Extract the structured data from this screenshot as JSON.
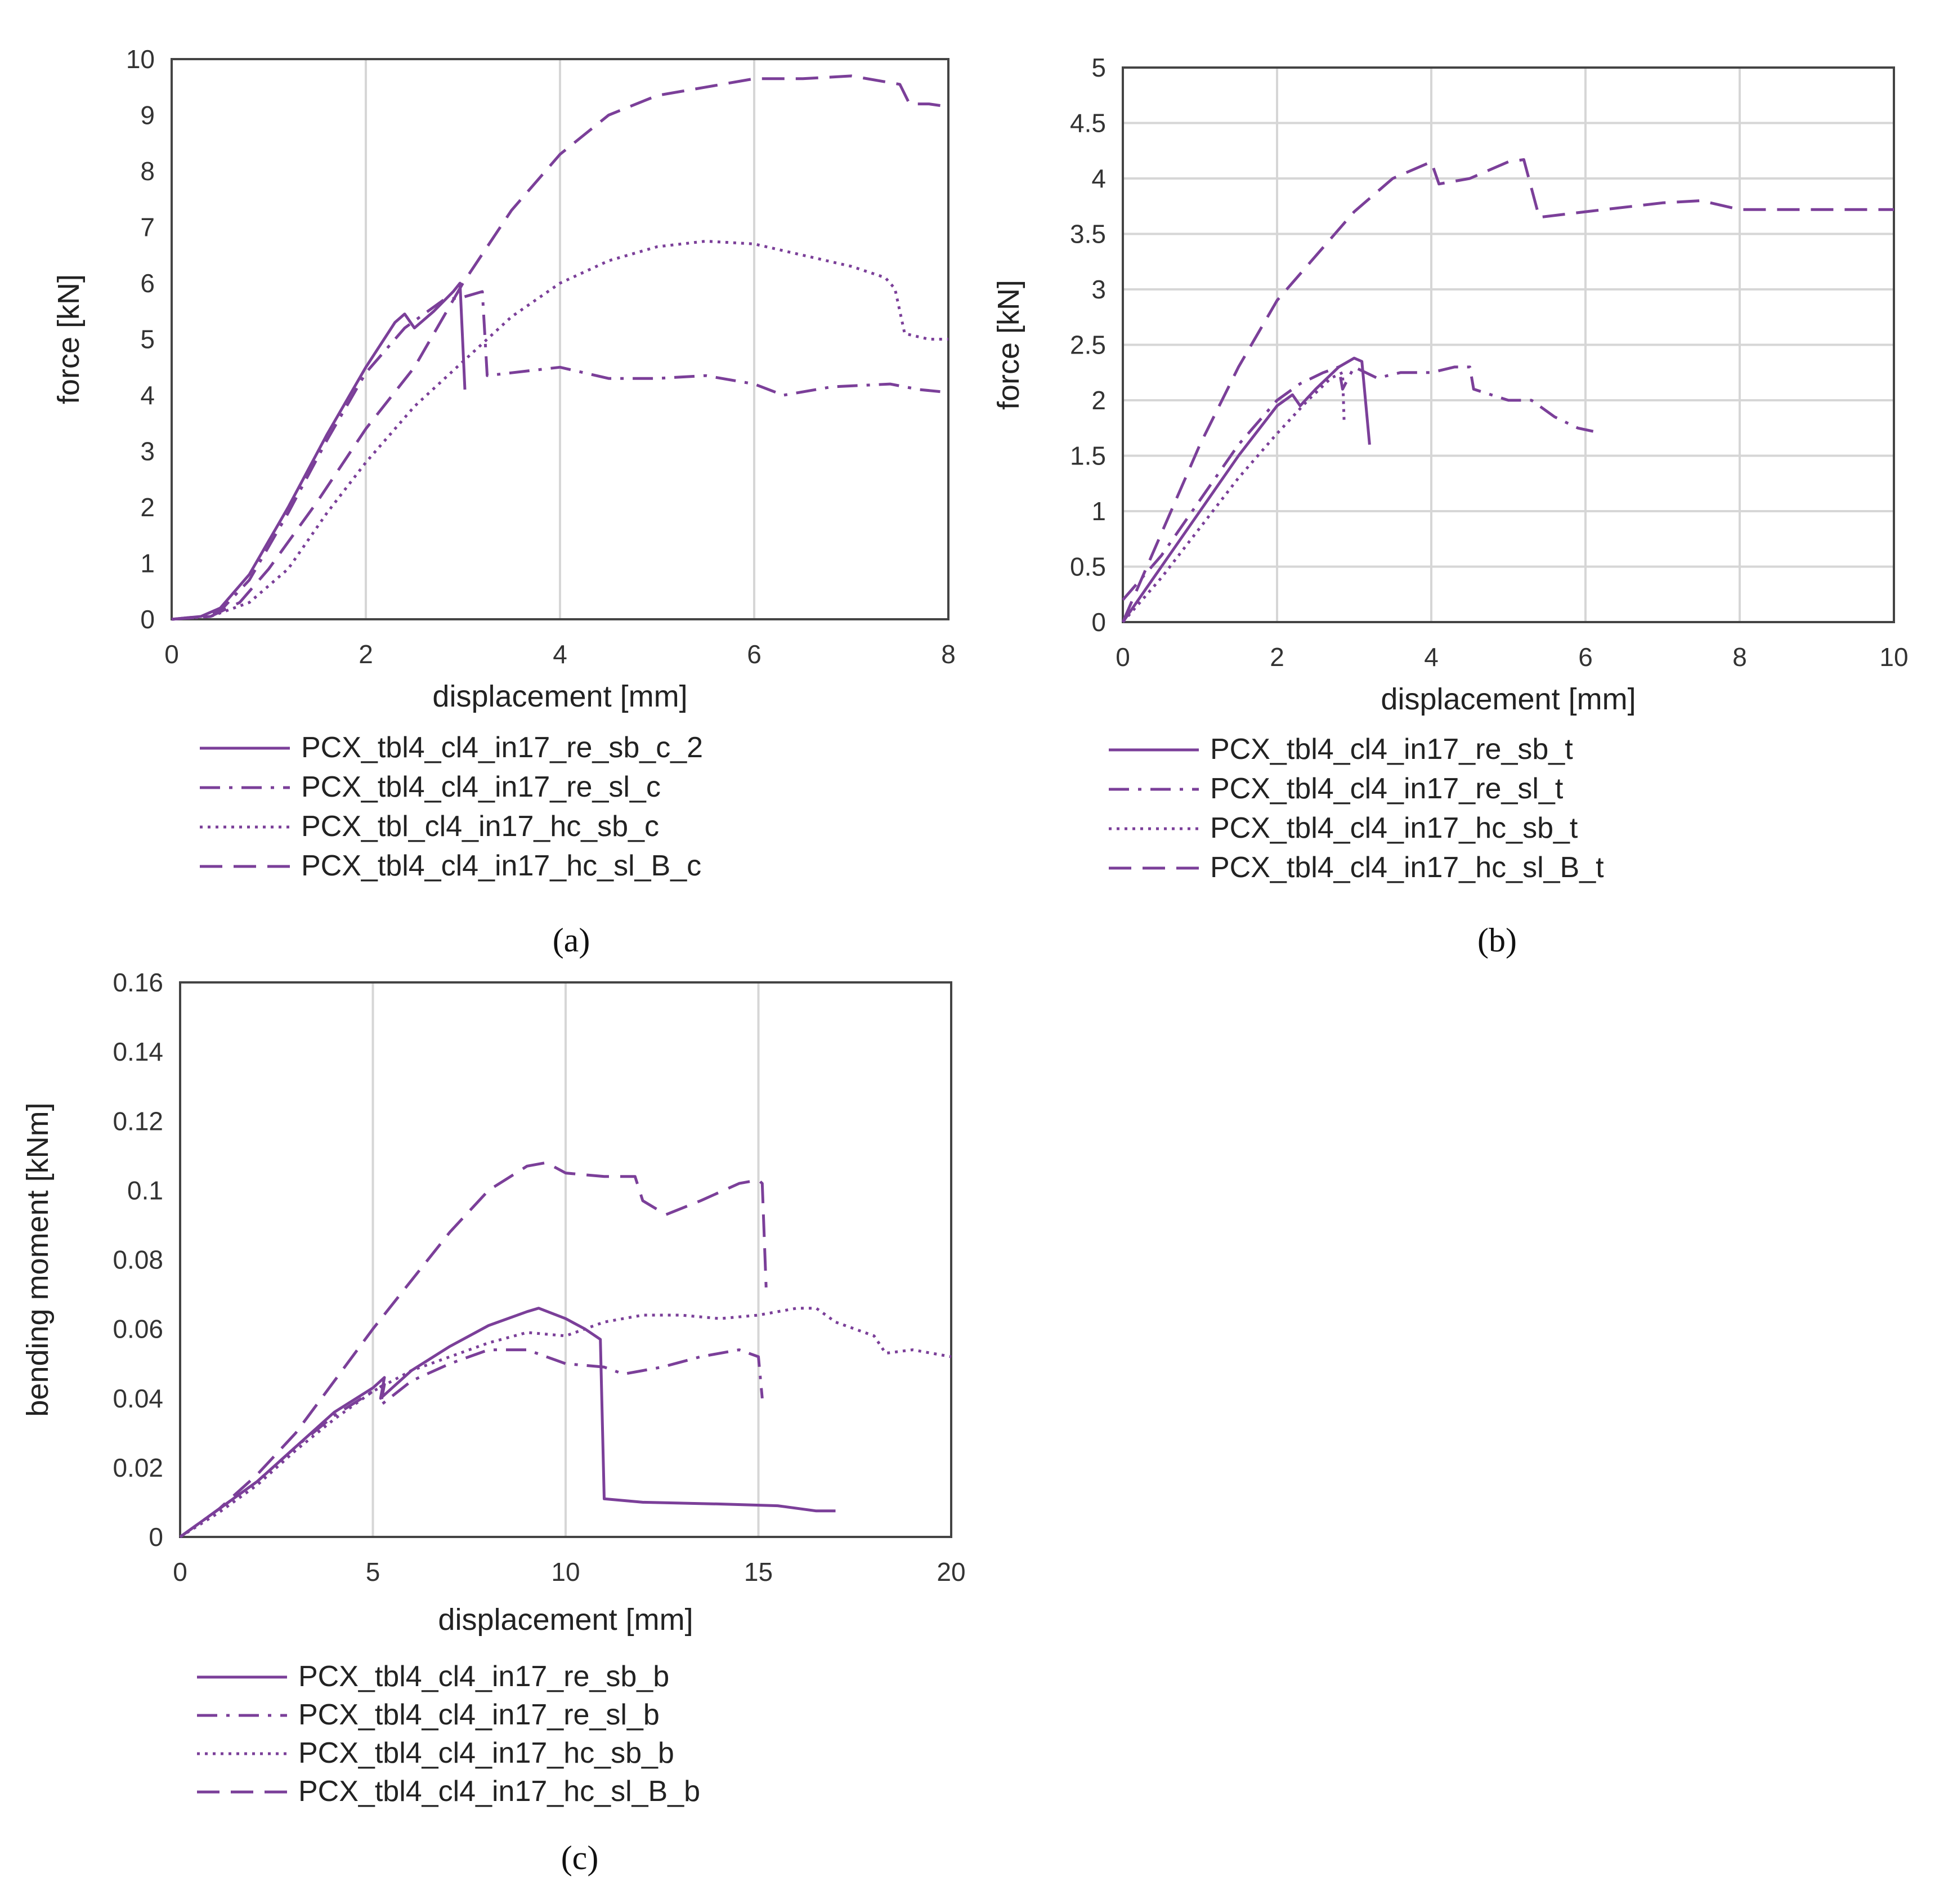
{
  "colors": {
    "series": "#7b3f99",
    "grid": "#d6d6d6",
    "frame": "#444444"
  },
  "chart_data": [
    {
      "id": "a",
      "type": "line",
      "caption": "(a)",
      "xlabel": "displacement [mm]",
      "ylabel": "force [kN]",
      "xlim": [
        0,
        8
      ],
      "ylim": [
        0,
        10
      ],
      "xticks": [
        0,
        2,
        4,
        6,
        8
      ],
      "yticks": [
        0,
        1,
        2,
        3,
        4,
        5,
        6,
        7,
        8,
        9,
        10
      ],
      "grid": "vertical",
      "legend": "below",
      "series": [
        {
          "name": "PCX_tbl4_cl4_in17_re_sb_c_2",
          "style": "solid",
          "points": [
            [
              0,
              0
            ],
            [
              0.3,
              0.05
            ],
            [
              0.5,
              0.2
            ],
            [
              0.8,
              0.8
            ],
            [
              1.2,
              2.0
            ],
            [
              1.6,
              3.3
            ],
            [
              2.0,
              4.5
            ],
            [
              2.3,
              5.3
            ],
            [
              2.4,
              5.45
            ],
            [
              2.5,
              5.2
            ],
            [
              2.7,
              5.5
            ],
            [
              2.9,
              5.85
            ],
            [
              2.97,
              6.0
            ],
            [
              3.02,
              4.1
            ]
          ]
        },
        {
          "name": "PCX_tbl4_cl4_in17_re_sl_c",
          "style": "dashdot",
          "points": [
            [
              0,
              0
            ],
            [
              0.3,
              0.05
            ],
            [
              0.5,
              0.15
            ],
            [
              0.8,
              0.7
            ],
            [
              1.2,
              1.9
            ],
            [
              1.6,
              3.2
            ],
            [
              2.0,
              4.4
            ],
            [
              2.4,
              5.2
            ],
            [
              2.8,
              5.7
            ],
            [
              3.0,
              5.75
            ],
            [
              3.2,
              5.85
            ],
            [
              3.25,
              4.35
            ],
            [
              3.5,
              4.4
            ],
            [
              4.0,
              4.5
            ],
            [
              4.5,
              4.3
            ],
            [
              5.0,
              4.3
            ],
            [
              5.5,
              4.35
            ],
            [
              6.0,
              4.2
            ],
            [
              6.3,
              4.0
            ],
            [
              6.8,
              4.15
            ],
            [
              7.4,
              4.2
            ],
            [
              7.7,
              4.1
            ],
            [
              8.0,
              4.05
            ]
          ]
        },
        {
          "name": "PCX_tbl_cl4_in17_hc_sb_c",
          "style": "dotted",
          "points": [
            [
              0,
              0
            ],
            [
              0.4,
              0.05
            ],
            [
              0.8,
              0.3
            ],
            [
              1.2,
              0.9
            ],
            [
              1.6,
              1.9
            ],
            [
              2.0,
              2.8
            ],
            [
              2.5,
              3.8
            ],
            [
              3.0,
              4.6
            ],
            [
              3.5,
              5.4
            ],
            [
              4.0,
              6.0
            ],
            [
              4.5,
              6.4
            ],
            [
              5.0,
              6.65
            ],
            [
              5.5,
              6.75
            ],
            [
              6.0,
              6.7
            ],
            [
              6.5,
              6.5
            ],
            [
              7.0,
              6.3
            ],
            [
              7.35,
              6.1
            ],
            [
              7.45,
              5.9
            ],
            [
              7.55,
              5.1
            ],
            [
              7.8,
              5.0
            ],
            [
              8.0,
              5.0
            ]
          ]
        },
        {
          "name": "PCX_tbl4_cl4_in17_hc_sl_B_c",
          "style": "dashed",
          "points": [
            [
              0,
              0
            ],
            [
              0.4,
              0.05
            ],
            [
              0.7,
              0.3
            ],
            [
              1.0,
              0.9
            ],
            [
              1.5,
              2.1
            ],
            [
              2.0,
              3.4
            ],
            [
              2.5,
              4.5
            ],
            [
              3.0,
              6.0
            ],
            [
              3.5,
              7.3
            ],
            [
              4.0,
              8.3
            ],
            [
              4.5,
              9.0
            ],
            [
              5.0,
              9.35
            ],
            [
              5.5,
              9.5
            ],
            [
              6.0,
              9.65
            ],
            [
              6.5,
              9.65
            ],
            [
              7.0,
              9.7
            ],
            [
              7.5,
              9.55
            ],
            [
              7.6,
              9.2
            ],
            [
              7.8,
              9.2
            ],
            [
              8.0,
              9.15
            ]
          ]
        }
      ]
    },
    {
      "id": "b",
      "type": "line",
      "caption": "(b)",
      "xlabel": "displacement [mm]",
      "ylabel": "force [kN]",
      "xlim": [
        0,
        10
      ],
      "ylim": [
        0,
        5
      ],
      "xticks": [
        0,
        2,
        4,
        6,
        8,
        10
      ],
      "yticks": [
        0,
        0.5,
        1,
        1.5,
        2,
        2.5,
        3,
        3.5,
        4,
        4.5,
        5
      ],
      "grid": "both",
      "legend": "below",
      "series": [
        {
          "name": "PCX_tbl4_cl4_in17_re_sb_t",
          "style": "solid",
          "points": [
            [
              0,
              0
            ],
            [
              0.5,
              0.5
            ],
            [
              1.0,
              1.0
            ],
            [
              1.5,
              1.5
            ],
            [
              2.0,
              1.95
            ],
            [
              2.2,
              2.05
            ],
            [
              2.3,
              1.95
            ],
            [
              2.5,
              2.1
            ],
            [
              2.8,
              2.3
            ],
            [
              3.0,
              2.38
            ],
            [
              3.1,
              2.35
            ],
            [
              3.2,
              1.6
            ]
          ]
        },
        {
          "name": "PCX_tbl4_cl4_in17_re_sl_t",
          "style": "dashdot",
          "points": [
            [
              0,
              0.2
            ],
            [
              0.5,
              0.6
            ],
            [
              1.0,
              1.1
            ],
            [
              1.5,
              1.6
            ],
            [
              2.0,
              2.0
            ],
            [
              2.3,
              2.15
            ],
            [
              2.6,
              2.25
            ],
            [
              2.8,
              2.3
            ],
            [
              2.85,
              2.1
            ],
            [
              3.0,
              2.3
            ],
            [
              3.3,
              2.2
            ],
            [
              3.6,
              2.25
            ],
            [
              4.0,
              2.25
            ],
            [
              4.3,
              2.3
            ],
            [
              4.5,
              2.3
            ],
            [
              4.55,
              2.1
            ],
            [
              5.0,
              2.0
            ],
            [
              5.3,
              2.0
            ],
            [
              5.6,
              1.85
            ],
            [
              5.9,
              1.75
            ],
            [
              6.1,
              1.72
            ]
          ]
        },
        {
          "name": "PCX_tbl4_cl4_in17_hc_sb_t",
          "style": "dotted",
          "points": [
            [
              0,
              0
            ],
            [
              0.5,
              0.4
            ],
            [
              1.0,
              0.85
            ],
            [
              1.5,
              1.3
            ],
            [
              2.0,
              1.7
            ],
            [
              2.4,
              2.0
            ],
            [
              2.7,
              2.2
            ],
            [
              2.85,
              2.25
            ],
            [
              2.87,
              1.8
            ]
          ]
        },
        {
          "name": "PCX_tbl4_cl4_in17_hc_sl_B_t",
          "style": "dashed",
          "points": [
            [
              0,
              0
            ],
            [
              0.5,
              0.8
            ],
            [
              1.0,
              1.6
            ],
            [
              1.5,
              2.3
            ],
            [
              2.0,
              2.9
            ],
            [
              2.5,
              3.3
            ],
            [
              3.0,
              3.7
            ],
            [
              3.5,
              4.0
            ],
            [
              4.0,
              4.15
            ],
            [
              4.1,
              3.95
            ],
            [
              4.5,
              4.0
            ],
            [
              5.0,
              4.15
            ],
            [
              5.2,
              4.17
            ],
            [
              5.4,
              3.65
            ],
            [
              6.0,
              3.7
            ],
            [
              7.0,
              3.78
            ],
            [
              7.5,
              3.8
            ],
            [
              8.0,
              3.72
            ],
            [
              9.0,
              3.72
            ],
            [
              10.0,
              3.72
            ]
          ]
        }
      ]
    },
    {
      "id": "c",
      "type": "line",
      "caption": "(c)",
      "xlabel": "displacement [mm]",
      "ylabel": "bending moment [kNm]",
      "xlim": [
        0,
        20
      ],
      "ylim": [
        0,
        0.16
      ],
      "xticks": [
        0,
        5,
        10,
        15,
        20
      ],
      "yticks": [
        0,
        0.02,
        0.04,
        0.06,
        0.08,
        0.1,
        0.12,
        0.14,
        0.16
      ],
      "ytick_labels": [
        "0",
        "0.02",
        "0.04",
        "0.06",
        "0.08",
        "0.1",
        "0.12",
        "0.14",
        "0.16"
      ],
      "grid": "vertical",
      "legend": "below",
      "series": [
        {
          "name": "PCX_tbl4_cl4_in17_re_sb_b",
          "style": "solid",
          "points": [
            [
              0,
              0
            ],
            [
              1,
              0.008
            ],
            [
              2,
              0.016
            ],
            [
              3,
              0.026
            ],
            [
              4,
              0.036
            ],
            [
              5,
              0.043
            ],
            [
              5.3,
              0.046
            ],
            [
              5.2,
              0.04
            ],
            [
              6,
              0.048
            ],
            [
              7,
              0.055
            ],
            [
              8,
              0.061
            ],
            [
              9,
              0.065
            ],
            [
              9.3,
              0.066
            ],
            [
              10,
              0.063
            ],
            [
              10.5,
              0.06
            ],
            [
              10.9,
              0.057
            ],
            [
              11.0,
              0.011
            ],
            [
              12,
              0.01
            ],
            [
              14,
              0.0095
            ],
            [
              15.5,
              0.009
            ],
            [
              16.5,
              0.0075
            ],
            [
              17,
              0.0075
            ]
          ]
        },
        {
          "name": "PCX_tbl4_cl4_in17_re_sl_b",
          "style": "dashdot",
          "points": [
            [
              0,
              0
            ],
            [
              1,
              0.008
            ],
            [
              2,
              0.016
            ],
            [
              3,
              0.026
            ],
            [
              4,
              0.035
            ],
            [
              5,
              0.042
            ],
            [
              5.3,
              0.044
            ],
            [
              5.2,
              0.038
            ],
            [
              6,
              0.045
            ],
            [
              7,
              0.05
            ],
            [
              8,
              0.054
            ],
            [
              9,
              0.054
            ],
            [
              10,
              0.05
            ],
            [
              11,
              0.049
            ],
            [
              11.5,
              0.047
            ],
            [
              12.5,
              0.049
            ],
            [
              13.5,
              0.052
            ],
            [
              14.5,
              0.054
            ],
            [
              15.0,
              0.052
            ],
            [
              15.1,
              0.04
            ]
          ]
        },
        {
          "name": "PCX_tbl4_cl4_in17_hc_sb_b",
          "style": "dotted",
          "points": [
            [
              0,
              0
            ],
            [
              1,
              0.007
            ],
            [
              2,
              0.015
            ],
            [
              3,
              0.025
            ],
            [
              4,
              0.034
            ],
            [
              5,
              0.042
            ],
            [
              6,
              0.048
            ],
            [
              7,
              0.052
            ],
            [
              8,
              0.056
            ],
            [
              9,
              0.059
            ],
            [
              10,
              0.058
            ],
            [
              11,
              0.062
            ],
            [
              12,
              0.064
            ],
            [
              13,
              0.064
            ],
            [
              14,
              0.063
            ],
            [
              15,
              0.064
            ],
            [
              16,
              0.066
            ],
            [
              16.5,
              0.066
            ],
            [
              17,
              0.062
            ],
            [
              18,
              0.058
            ],
            [
              18.3,
              0.053
            ],
            [
              19,
              0.054
            ],
            [
              20,
              0.052
            ]
          ]
        },
        {
          "name": "PCX_tbl4_cl4_in17_hc_sl_B_b",
          "style": "dashed",
          "points": [
            [
              0,
              0
            ],
            [
              1,
              0.008
            ],
            [
              2,
              0.018
            ],
            [
              3,
              0.03
            ],
            [
              4,
              0.045
            ],
            [
              5,
              0.06
            ],
            [
              6,
              0.074
            ],
            [
              7,
              0.088
            ],
            [
              8,
              0.1
            ],
            [
              9,
              0.107
            ],
            [
              9.5,
              0.108
            ],
            [
              10,
              0.105
            ],
            [
              11,
              0.104
            ],
            [
              11.8,
              0.104
            ],
            [
              12,
              0.097
            ],
            [
              12.6,
              0.093
            ],
            [
              13.5,
              0.097
            ],
            [
              14.5,
              0.102
            ],
            [
              15.0,
              0.103
            ],
            [
              15.1,
              0.102
            ],
            [
              15.2,
              0.072
            ]
          ]
        }
      ]
    }
  ]
}
